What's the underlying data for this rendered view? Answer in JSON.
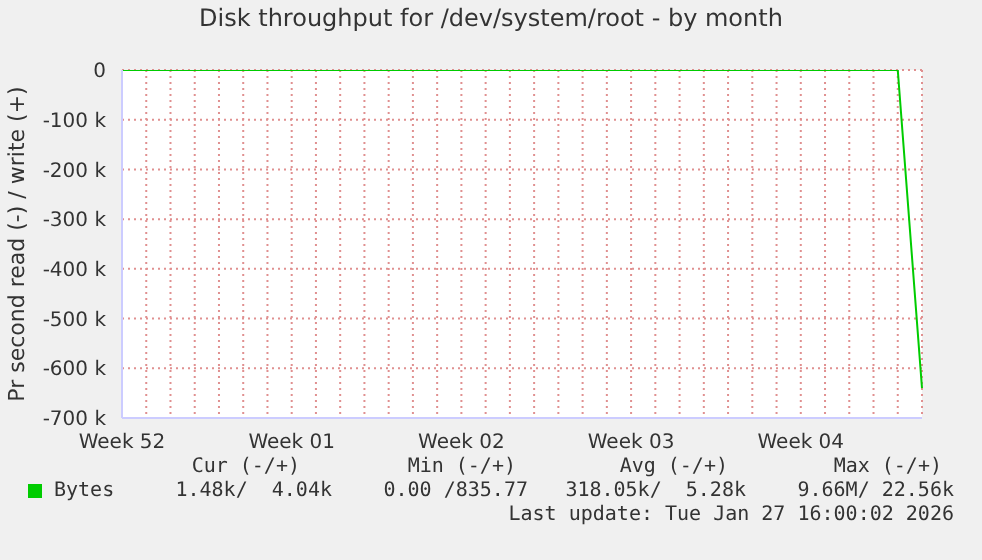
{
  "chart_data": {
    "type": "line",
    "title": "Disk throughput for /dev/system/root - by month",
    "ylabel": "Pr second read (-) / write (+)",
    "categories": [
      "Week 52",
      null,
      null,
      null,
      null,
      null,
      null,
      "Week 01",
      null,
      null,
      null,
      null,
      null,
      null,
      "Week 02",
      null,
      null,
      null,
      null,
      null,
      null,
      "Week 03",
      null,
      null,
      null,
      null,
      null,
      null,
      "Week 04",
      null,
      null,
      null,
      null,
      null
    ],
    "series": [
      {
        "name": "Bytes",
        "color": "#00cc00",
        "values": [
          0,
          0,
          0,
          0,
          0,
          0,
          0,
          0,
          0,
          0,
          0,
          0,
          0,
          0,
          0,
          0,
          0,
          0,
          0,
          0,
          0,
          0,
          0,
          0,
          0,
          0,
          0,
          0,
          0,
          0,
          0,
          0,
          0,
          -640000
        ]
      }
    ],
    "ylim": [
      -700000,
      0
    ],
    "yticks": [
      {
        "value": 0,
        "label": "0"
      },
      {
        "value": -100000,
        "label": "-100 k"
      },
      {
        "value": -200000,
        "label": "-200 k"
      },
      {
        "value": -300000,
        "label": "-300 k"
      },
      {
        "value": -400000,
        "label": "-400 k"
      },
      {
        "value": -500000,
        "label": "-500 k"
      },
      {
        "value": -600000,
        "label": "-600 k"
      },
      {
        "value": -700000,
        "label": "-700 k"
      }
    ],
    "grid": true,
    "legend": "bottom left",
    "annotations": [
      "Cur (-/+)",
      "Min (-/+)",
      "Avg (-/+)",
      "Max (-/+)",
      "1.48k/  4.04k",
      "0.00 /835.77",
      "318.05k/  5.28k",
      "9.66M/ 22.56k",
      "Last update: Tue Jan 27 16:00:02 2026"
    ]
  }
}
